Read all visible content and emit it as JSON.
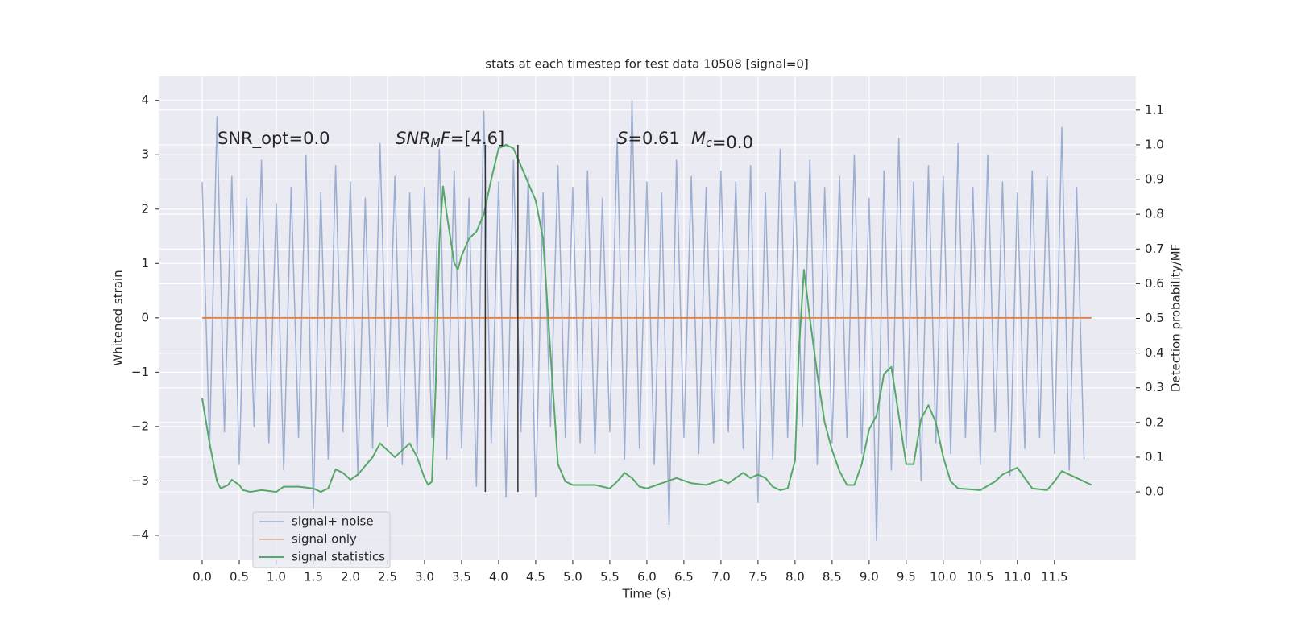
{
  "chart_data": {
    "type": "line",
    "title": "stats at each timestep for test data 10508 [signal=0]",
    "xlabel": "Time (s)",
    "ylabel": "Whitened strain",
    "y2label": "Detection probability/MF",
    "annotations": [
      {
        "text": "SNR_opt=0.0",
        "math": false
      },
      {
        "text": "SNR_MF=[4.6]",
        "math": true
      },
      {
        "text": "S=0.61",
        "math": true
      },
      {
        "text": "M_c=0.0",
        "math": true
      }
    ],
    "xlim": [
      -0.587,
      12.6
    ],
    "ylim": [
      -4.46,
      4.44
    ],
    "y2lim": [
      -0.197,
      1.197
    ],
    "grid": true,
    "legend": "lower left",
    "xticks": [
      {
        "value": 0,
        "label": "0.0"
      },
      {
        "value": 0.5,
        "label": "0.5"
      },
      {
        "value": 1,
        "label": "1.0"
      },
      {
        "value": 1.5,
        "label": "1.5"
      },
      {
        "value": 2,
        "label": "2.0"
      },
      {
        "value": 2.5,
        "label": "2.5"
      },
      {
        "value": 3,
        "label": "3.0"
      },
      {
        "value": 3.5,
        "label": "3.5"
      },
      {
        "value": 4,
        "label": "4.0"
      },
      {
        "value": 4.5,
        "label": "4.5"
      },
      {
        "value": 5,
        "label": "5.0"
      },
      {
        "value": 5.5,
        "label": "5.5"
      },
      {
        "value": 6,
        "label": "6.0"
      },
      {
        "value": 6.5,
        "label": "6.5"
      },
      {
        "value": 7,
        "label": "7.0"
      },
      {
        "value": 7.5,
        "label": "7.5"
      },
      {
        "value": 8,
        "label": "8.0"
      },
      {
        "value": 8.5,
        "label": "8.5"
      },
      {
        "value": 9,
        "label": "9.0"
      },
      {
        "value": 9.5,
        "label": "9.5"
      },
      {
        "value": 10,
        "label": "10.0"
      },
      {
        "value": 10.5,
        "label": "10.5"
      },
      {
        "value": 11,
        "label": "11.0"
      },
      {
        "value": 11.5,
        "label": "11.5"
      }
    ],
    "yticks": [
      {
        "value": -4,
        "label": "−4"
      },
      {
        "value": -3,
        "label": "−3"
      },
      {
        "value": -2,
        "label": "−2"
      },
      {
        "value": -1,
        "label": "−1"
      },
      0,
      1,
      2,
      3,
      4
    ],
    "y2ticks": [
      {
        "value": 0,
        "label": "0.0"
      },
      {
        "value": 0.1,
        "label": "0.1"
      },
      {
        "value": 0.2,
        "label": "0.2"
      },
      {
        "value": 0.3,
        "label": "0.3"
      },
      {
        "value": 0.4,
        "label": "0.4"
      },
      {
        "value": 0.5,
        "label": "0.5"
      },
      {
        "value": 0.6,
        "label": "0.6"
      },
      {
        "value": 0.7,
        "label": "0.7"
      },
      {
        "value": 0.8,
        "label": "0.8"
      },
      {
        "value": 0.9,
        "label": "0.9"
      },
      {
        "value": 1.0,
        "label": "1.0"
      },
      {
        "value": 1.1,
        "label": "1.1"
      }
    ],
    "vlines": {
      "x": [
        3.82,
        4.26
      ],
      "ymin": 0,
      "ymax": 1.0,
      "axis": "y2",
      "color": "#333333"
    },
    "series": [
      {
        "name": "signal+ noise",
        "color": "#4c72b0",
        "x": [
          0.0,
          0.1,
          0.2,
          0.3,
          0.4,
          0.5,
          0.6,
          0.7,
          0.8,
          0.9,
          1.0,
          1.1,
          1.2,
          1.3,
          1.4,
          1.5,
          1.6,
          1.7,
          1.8,
          1.9,
          2.0,
          2.1,
          2.2,
          2.3,
          2.4,
          2.5,
          2.6,
          2.7,
          2.8,
          2.9,
          3.0,
          3.1,
          3.2,
          3.3,
          3.4,
          3.5,
          3.6,
          3.7,
          3.8,
          3.9,
          4.0,
          4.1,
          4.2,
          4.3,
          4.4,
          4.5,
          4.6,
          4.7,
          4.8,
          4.9,
          5.0,
          5.1,
          5.2,
          5.3,
          5.4,
          5.5,
          5.6,
          5.7,
          5.8,
          5.9,
          6.0,
          6.1,
          6.2,
          6.3,
          6.4,
          6.5,
          6.6,
          6.7,
          6.8,
          6.9,
          7.0,
          7.1,
          7.2,
          7.3,
          7.4,
          7.5,
          7.6,
          7.7,
          7.8,
          7.9,
          8.0,
          8.1,
          8.2,
          8.3,
          8.4,
          8.5,
          8.6,
          8.7,
          8.8,
          8.9,
          9.0,
          9.1,
          9.2,
          9.3,
          9.4,
          9.5,
          9.6,
          9.7,
          9.8,
          9.9,
          10.0,
          10.1,
          10.2,
          10.3,
          10.4,
          10.5,
          10.6,
          10.7,
          10.8,
          10.9,
          11.0,
          11.1,
          11.2,
          11.3,
          11.4,
          11.5,
          11.6,
          11.7,
          11.8,
          11.9
        ],
        "values": [
          2.5,
          -2.4,
          3.7,
          -2.1,
          2.6,
          -2.7,
          2.2,
          -2.0,
          2.9,
          -2.3,
          2.1,
          -2.8,
          2.4,
          -2.2,
          3.0,
          -3.5,
          2.3,
          -2.6,
          2.8,
          -2.1,
          2.5,
          -2.9,
          2.2,
          -2.4,
          3.2,
          -2.0,
          2.6,
          -2.7,
          2.3,
          -2.5,
          2.4,
          -2.2,
          3.1,
          -2.6,
          2.7,
          -2.4,
          2.2,
          -3.1,
          3.8,
          -2.3,
          2.5,
          -3.3,
          2.9,
          -2.1,
          2.6,
          -3.3,
          2.3,
          -2.0,
          2.8,
          -2.2,
          2.4,
          -2.3,
          2.7,
          -2.5,
          2.2,
          -2.1,
          3.3,
          -2.6,
          4.0,
          -2.4,
          2.5,
          -2.7,
          2.3,
          -3.8,
          2.9,
          -2.2,
          2.6,
          -2.5,
          2.4,
          -2.3,
          2.7,
          -2.1,
          2.5,
          -2.4,
          2.8,
          -3.4,
          2.3,
          -2.6,
          3.1,
          -2.2,
          2.5,
          -2.0,
          2.9,
          -2.7,
          2.4,
          -2.3,
          2.6,
          -2.2,
          3.0,
          -2.5,
          2.2,
          -4.1,
          2.7,
          -2.8,
          3.3,
          -2.4,
          2.5,
          -3.0,
          2.8,
          -2.3,
          2.6,
          -2.5,
          3.2,
          -2.2,
          2.4,
          -2.7,
          3.0,
          -2.1,
          2.5,
          -2.9,
          2.3,
          -2.4,
          2.7,
          -2.2,
          2.6,
          -2.5,
          3.5,
          -2.8,
          2.4,
          -2.6
        ]
      },
      {
        "name": "signal only",
        "color": "#dd8452",
        "x": [
          0.0,
          12.0
        ],
        "values": [
          0,
          0
        ]
      },
      {
        "name": "signal statistics",
        "color": "#55a868",
        "axis": "y2",
        "x": [
          0.0,
          0.1,
          0.2,
          0.25,
          0.35,
          0.4,
          0.5,
          0.55,
          0.65,
          0.8,
          1.0,
          1.1,
          1.3,
          1.5,
          1.6,
          1.7,
          1.8,
          1.9,
          2.0,
          2.1,
          2.3,
          2.4,
          2.5,
          2.6,
          2.7,
          2.8,
          2.9,
          3.0,
          3.05,
          3.1,
          3.15,
          3.2,
          3.25,
          3.3,
          3.4,
          3.45,
          3.5,
          3.6,
          3.7,
          3.8,
          3.9,
          4.0,
          4.1,
          4.2,
          4.3,
          4.4,
          4.5,
          4.6,
          4.7,
          4.8,
          4.9,
          5.0,
          5.3,
          5.5,
          5.6,
          5.7,
          5.8,
          5.9,
          6.0,
          6.2,
          6.4,
          6.6,
          6.8,
          7.0,
          7.1,
          7.2,
          7.3,
          7.4,
          7.5,
          7.6,
          7.7,
          7.8,
          7.9,
          8.0,
          8.05,
          8.12,
          8.2,
          8.3,
          8.4,
          8.5,
          8.6,
          8.7,
          8.8,
          8.9,
          9.0,
          9.1,
          9.2,
          9.3,
          9.4,
          9.5,
          9.6,
          9.7,
          9.8,
          9.9,
          10.0,
          10.1,
          10.2,
          10.5,
          10.7,
          10.8,
          11.0,
          11.1,
          11.2,
          11.4,
          11.5,
          11.6,
          11.8,
          11.9,
          12.0
        ],
        "values": [
          0.27,
          0.14,
          0.03,
          0.01,
          0.02,
          0.035,
          0.02,
          0.005,
          0.0,
          0.005,
          0.0,
          0.015,
          0.015,
          0.01,
          0.0,
          0.01,
          0.065,
          0.055,
          0.035,
          0.05,
          0.1,
          0.14,
          0.12,
          0.1,
          0.12,
          0.14,
          0.1,
          0.04,
          0.02,
          0.03,
          0.3,
          0.72,
          0.88,
          0.8,
          0.66,
          0.64,
          0.68,
          0.73,
          0.75,
          0.8,
          0.9,
          0.99,
          1.0,
          0.99,
          0.94,
          0.89,
          0.84,
          0.73,
          0.4,
          0.08,
          0.03,
          0.02,
          0.02,
          0.01,
          0.03,
          0.055,
          0.04,
          0.015,
          0.01,
          0.025,
          0.04,
          0.025,
          0.02,
          0.035,
          0.025,
          0.04,
          0.055,
          0.04,
          0.05,
          0.04,
          0.015,
          0.005,
          0.01,
          0.09,
          0.4,
          0.64,
          0.5,
          0.34,
          0.2,
          0.12,
          0.06,
          0.02,
          0.02,
          0.08,
          0.18,
          0.22,
          0.34,
          0.36,
          0.22,
          0.08,
          0.08,
          0.21,
          0.25,
          0.2,
          0.1,
          0.03,
          0.01,
          0.005,
          0.03,
          0.05,
          0.07,
          0.04,
          0.01,
          0.005,
          0.03,
          0.06,
          0.04,
          0.03,
          0.02
        ]
      }
    ]
  }
}
